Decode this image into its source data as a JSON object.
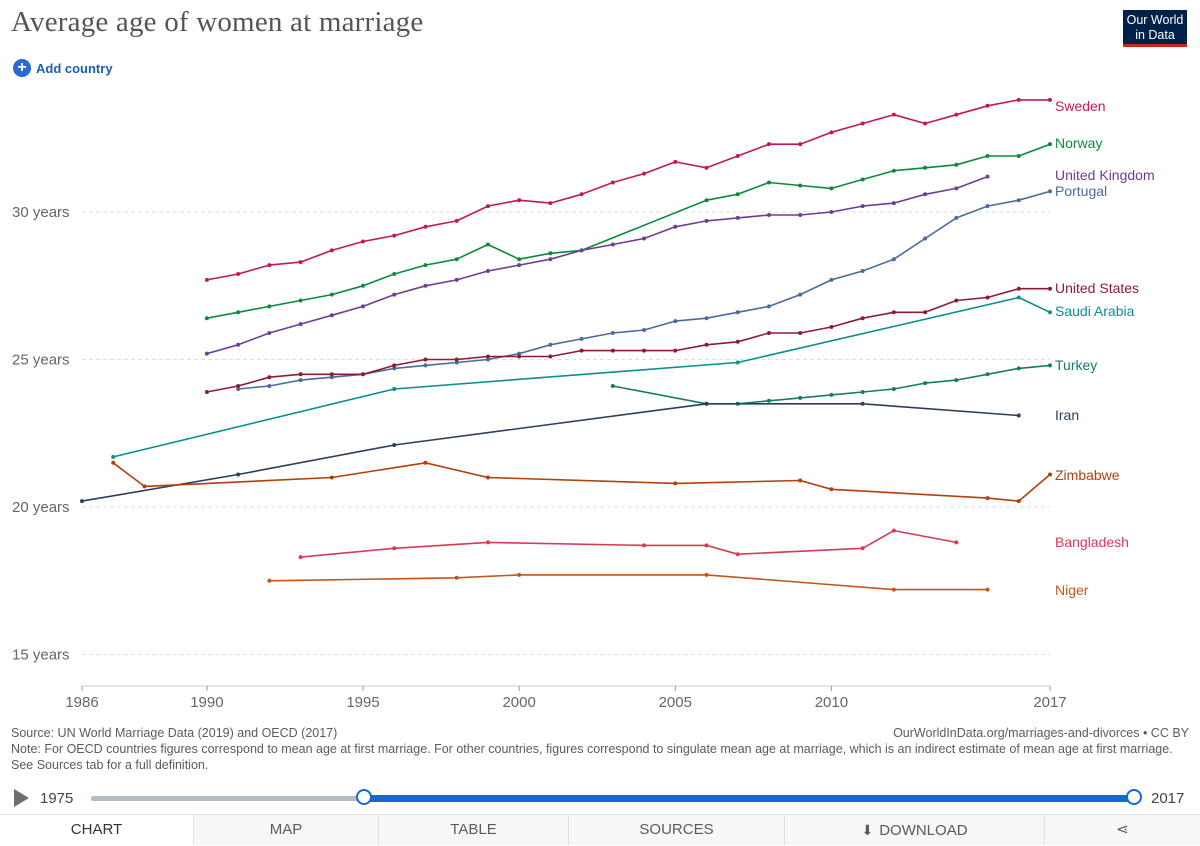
{
  "header": {
    "title": "Average age of women at marriage",
    "logo_line1": "Our World",
    "logo_line2": "in Data",
    "add_country": "Add country"
  },
  "chart_data": {
    "type": "line",
    "title": "Average age of women at marriage",
    "xlim": [
      1986,
      2017
    ],
    "ylim": [
      14.5,
      34
    ],
    "yticks": [
      {
        "v": 15,
        "label": "15 years"
      },
      {
        "v": 20,
        "label": "20 years"
      },
      {
        "v": 25,
        "label": "25 years"
      },
      {
        "v": 30,
        "label": "30 years"
      }
    ],
    "xticks": [
      1986,
      1990,
      1995,
      2000,
      2005,
      2010,
      2017
    ],
    "grid": true,
    "legend": "right-end labels",
    "series": [
      {
        "name": "Sweden",
        "color": "#c2185b",
        "x": [
          1990,
          1991,
          1992,
          1993,
          1994,
          1995,
          1996,
          1997,
          1998,
          1999,
          2000,
          2001,
          2002,
          2003,
          2004,
          2005,
          2006,
          2007,
          2008,
          2009,
          2010,
          2011,
          2012,
          2013,
          2014,
          2015,
          2016,
          2017
        ],
        "y": [
          27.7,
          27.9,
          28.2,
          28.3,
          28.7,
          29.0,
          29.2,
          29.5,
          29.7,
          30.2,
          30.4,
          30.3,
          30.6,
          31.0,
          31.3,
          31.7,
          31.5,
          31.9,
          32.3,
          32.3,
          32.7,
          33.0,
          33.3,
          33.0,
          33.3,
          33.6,
          33.8,
          33.8
        ]
      },
      {
        "name": "Norway",
        "color": "#0b8a3e",
        "x": [
          1990,
          1991,
          1992,
          1993,
          1994,
          1995,
          1996,
          1997,
          1998,
          1999,
          2000,
          2001,
          2002,
          2006,
          2007,
          2008,
          2009,
          2010,
          2011,
          2012,
          2013,
          2014,
          2015,
          2016,
          2017
        ],
        "y": [
          26.4,
          26.6,
          26.8,
          27.0,
          27.2,
          27.5,
          27.9,
          28.2,
          28.4,
          28.9,
          28.4,
          28.6,
          28.7,
          30.4,
          30.6,
          31.0,
          30.9,
          30.8,
          31.1,
          31.4,
          31.5,
          31.6,
          31.9,
          31.9,
          32.3
        ]
      },
      {
        "name": "United Kingdom",
        "color": "#6d3e91",
        "x": [
          1990,
          1991,
          1992,
          1993,
          1994,
          1995,
          1996,
          1997,
          1998,
          1999,
          2000,
          2001,
          2002,
          2003,
          2004,
          2005,
          2006,
          2007,
          2008,
          2009,
          2010,
          2011,
          2012,
          2013,
          2014,
          2015
        ],
        "y": [
          25.2,
          25.5,
          25.9,
          26.2,
          26.5,
          26.8,
          27.2,
          27.5,
          27.7,
          28.0,
          28.2,
          28.4,
          28.7,
          28.9,
          29.1,
          29.5,
          29.7,
          29.8,
          29.9,
          29.9,
          30.0,
          30.2,
          30.3,
          30.6,
          30.8,
          31.2
        ]
      },
      {
        "name": "Portugal",
        "color": "#4c6a9c",
        "x": [
          1991,
          1992,
          1993,
          1994,
          1995,
          1996,
          1997,
          1998,
          1999,
          2000,
          2001,
          2002,
          2003,
          2004,
          2005,
          2006,
          2007,
          2008,
          2009,
          2010,
          2011,
          2012,
          2013,
          2014,
          2015,
          2016,
          2017
        ],
        "y": [
          24.0,
          24.1,
          24.3,
          24.4,
          24.5,
          24.7,
          24.8,
          24.9,
          25.0,
          25.2,
          25.5,
          25.7,
          25.9,
          26.0,
          26.3,
          26.4,
          26.6,
          26.8,
          27.2,
          27.7,
          28.0,
          28.4,
          29.1,
          29.8,
          30.2,
          30.4,
          30.7
        ]
      },
      {
        "name": "United States",
        "color": "#8c1c34",
        "x": [
          1990,
          1991,
          1992,
          1993,
          1994,
          1995,
          1996,
          1997,
          1998,
          1999,
          2000,
          2001,
          2002,
          2003,
          2004,
          2005,
          2006,
          2007,
          2008,
          2009,
          2010,
          2011,
          2012,
          2013,
          2014,
          2015,
          2016,
          2017
        ],
        "y": [
          23.9,
          24.1,
          24.4,
          24.5,
          24.5,
          24.5,
          24.8,
          25.0,
          25.0,
          25.1,
          25.1,
          25.1,
          25.3,
          25.3,
          25.3,
          25.3,
          25.5,
          25.6,
          25.9,
          25.9,
          26.1,
          26.4,
          26.6,
          26.6,
          27.0,
          27.1,
          27.4,
          27.4
        ]
      },
      {
        "name": "Saudi Arabia",
        "color": "#0d8f8f",
        "x": [
          1987,
          1996,
          2007,
          2016,
          2017
        ],
        "y": [
          21.7,
          24.0,
          24.9,
          27.1,
          26.6
        ]
      },
      {
        "name": "Turkey",
        "color": "#177b67",
        "x": [
          2003,
          2006,
          2007,
          2008,
          2009,
          2010,
          2011,
          2012,
          2013,
          2014,
          2015,
          2016,
          2017
        ],
        "y": [
          24.1,
          23.5,
          23.5,
          23.6,
          23.7,
          23.8,
          23.9,
          24.0,
          24.2,
          24.3,
          24.5,
          24.7,
          24.8
        ]
      },
      {
        "name": "Iran",
        "color": "#2c3e5c",
        "x": [
          1986,
          1991,
          1996,
          2006,
          2011,
          2016
        ],
        "y": [
          20.2,
          21.1,
          22.1,
          23.5,
          23.5,
          23.1
        ]
      },
      {
        "name": "Zimbabwe",
        "color": "#b33f0a",
        "x": [
          1987,
          1988,
          1994,
          1997,
          1999,
          2005,
          2009,
          2010,
          2015,
          2016,
          2017
        ],
        "y": [
          21.5,
          20.7,
          21.0,
          21.5,
          21.0,
          20.8,
          20.9,
          20.6,
          20.3,
          20.2,
          21.1
        ]
      },
      {
        "name": "Bangladesh",
        "color": "#d63a55",
        "x": [
          1993,
          1996,
          1999,
          2004,
          2006,
          2007,
          2011,
          2012,
          2014
        ],
        "y": [
          18.3,
          18.6,
          18.8,
          18.7,
          18.7,
          18.4,
          18.6,
          19.2,
          18.8
        ]
      },
      {
        "name": "Niger",
        "color": "#c4561a",
        "x": [
          1992,
          1998,
          2000,
          2006,
          2012,
          2015
        ],
        "y": [
          17.5,
          17.6,
          17.7,
          17.7,
          17.2,
          17.2
        ]
      }
    ]
  },
  "footer": {
    "source": "Source: UN World Marriage Data (2019) and OECD (2017)",
    "url": "OurWorldInData.org/marriages-and-divorces • CC BY",
    "note": "Note: For OECD countries figures correspond to mean age at first marriage. For other countries, figures correspond to singulate mean age at marriage, which is an indirect estimate of mean age at first marriage. See Sources tab for a full definition."
  },
  "timeline": {
    "start": "1975",
    "end": "2017",
    "selected_start": 1986,
    "selected_end": 2017
  },
  "tabs": {
    "chart": "CHART",
    "map": "MAP",
    "table": "TABLE",
    "sources": "SOURCES",
    "download": "DOWNLOAD"
  },
  "colors": {
    "accent": "#0f6ad8",
    "logo_bg": "#002147",
    "logo_stripe": "#ce261e"
  }
}
